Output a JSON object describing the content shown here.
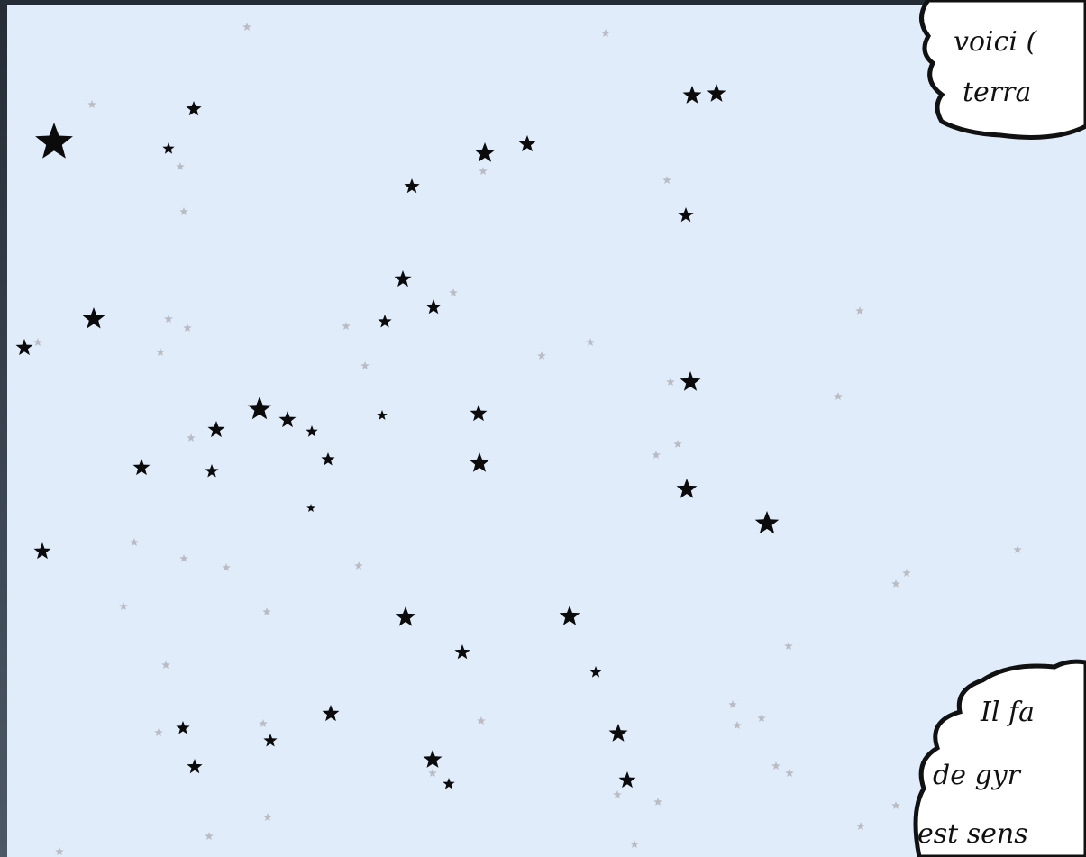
{
  "bubbles": [
    {
      "lines": [
        "voici (",
        "terra"
      ]
    },
    {
      "lines": [
        "Il fa",
        "de gyr",
        "est sens"
      ]
    }
  ]
}
